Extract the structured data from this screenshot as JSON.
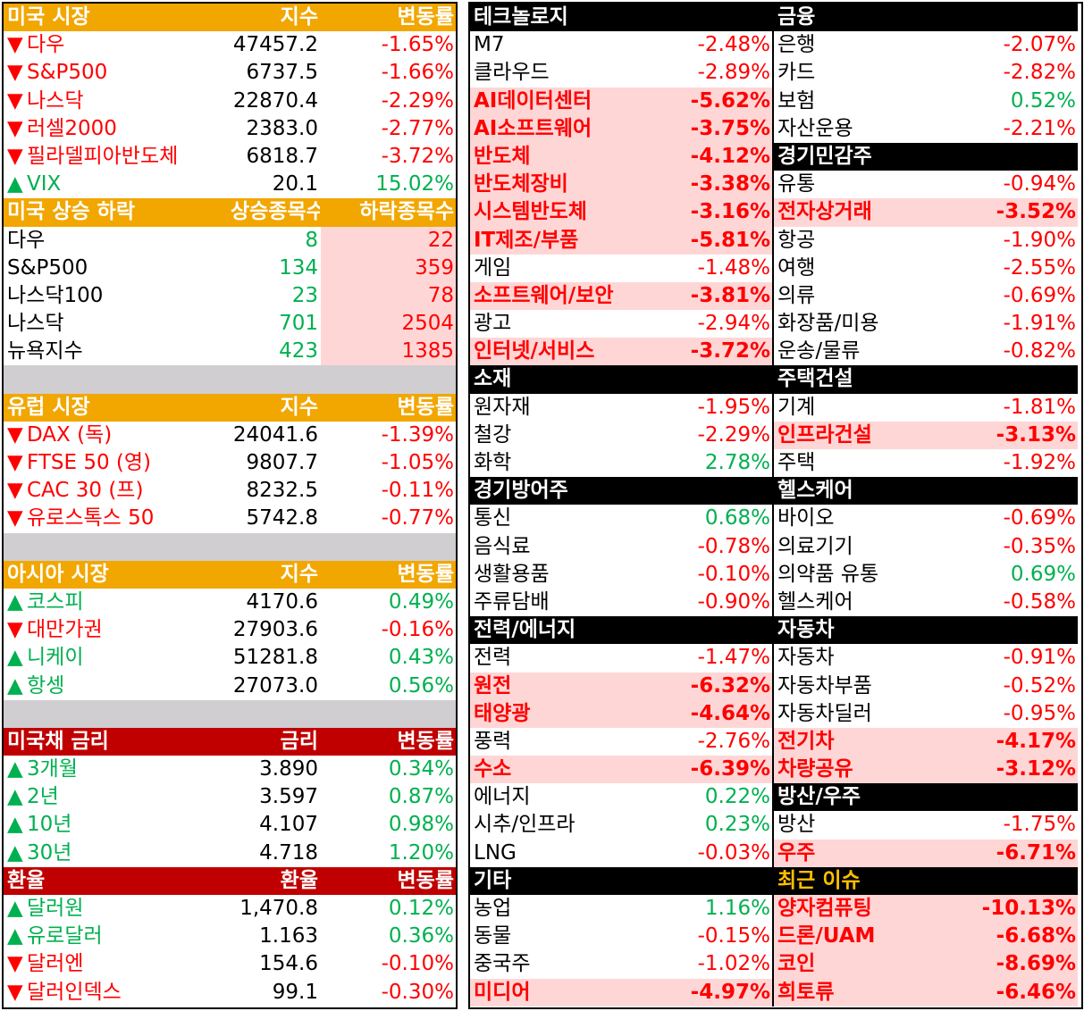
{
  "us_market": {
    "header": {
      "name": "미국 시장",
      "index": "지수",
      "change": "변동률"
    },
    "rows": [
      {
        "arrow": "▼",
        "name": "다우",
        "index": "47457.2",
        "change": "-1.65%",
        "dir": "down"
      },
      {
        "arrow": "▼",
        "name": "S&P500",
        "index": "6737.5",
        "change": "-1.66%",
        "dir": "down"
      },
      {
        "arrow": "▼",
        "name": "나스닥",
        "index": "22870.4",
        "change": "-2.29%",
        "dir": "down"
      },
      {
        "arrow": "▼",
        "name": "러셀2000",
        "index": "2383.0",
        "change": "-2.77%",
        "dir": "down"
      },
      {
        "arrow": "▼",
        "name": "필라델피아반도체",
        "index": "6818.7",
        "change": "-3.72%",
        "dir": "down"
      },
      {
        "arrow": "▲",
        "name": "VIX",
        "index": "20.1",
        "change": "15.02%",
        "dir": "up"
      }
    ]
  },
  "us_breadth": {
    "header": {
      "name": "미국 상승 하락",
      "up": "상승종목수",
      "down": "하락종목수"
    },
    "rows": [
      {
        "name": "다우",
        "up": "8",
        "down": "22"
      },
      {
        "name": "S&P500",
        "up": "134",
        "down": "359"
      },
      {
        "name": "나스닥100",
        "up": "23",
        "down": "78"
      },
      {
        "name": "나스닥",
        "up": "701",
        "down": "2504"
      },
      {
        "name": "뉴욕지수",
        "up": "423",
        "down": "1385"
      }
    ]
  },
  "eu_market": {
    "header": {
      "name": "유럽 시장",
      "index": "지수",
      "change": "변동률"
    },
    "rows": [
      {
        "arrow": "▼",
        "name": "DAX (독)",
        "index": "24041.6",
        "change": "-1.39%",
        "dir": "down"
      },
      {
        "arrow": "▼",
        "name": "FTSE 50 (영)",
        "index": "9807.7",
        "change": "-1.05%",
        "dir": "down"
      },
      {
        "arrow": "▼",
        "name": "CAC 30 (프)",
        "index": "8232.5",
        "change": "-0.11%",
        "dir": "down"
      },
      {
        "arrow": "▼",
        "name": "유로스톡스 50",
        "index": "5742.8",
        "change": "-0.77%",
        "dir": "down"
      }
    ]
  },
  "asia_market": {
    "header": {
      "name": "아시아 시장",
      "index": "지수",
      "change": "변동률"
    },
    "rows": [
      {
        "arrow": "▲",
        "name": "코스피",
        "index": "4170.6",
        "change": "0.49%",
        "dir": "up"
      },
      {
        "arrow": "▼",
        "name": "대만가권",
        "index": "27903.6",
        "change": "-0.16%",
        "dir": "down"
      },
      {
        "arrow": "▲",
        "name": "니케이",
        "index": "51281.8",
        "change": "0.43%",
        "dir": "up"
      },
      {
        "arrow": "▲",
        "name": "항셍",
        "index": "27073.0",
        "change": "0.56%",
        "dir": "up"
      }
    ]
  },
  "us_bonds": {
    "header": {
      "name": "미국채 금리",
      "index": "금리",
      "change": "변동률"
    },
    "rows": [
      {
        "arrow": "▲",
        "name": "3개월",
        "index": "3.890",
        "change": "0.34%",
        "dir": "up"
      },
      {
        "arrow": "▲",
        "name": "2년",
        "index": "3.597",
        "change": "0.87%",
        "dir": "up"
      },
      {
        "arrow": "▲",
        "name": "10년",
        "index": "4.107",
        "change": "0.98%",
        "dir": "up"
      },
      {
        "arrow": "▲",
        "name": "30년",
        "index": "4.718",
        "change": "1.20%",
        "dir": "up"
      }
    ]
  },
  "fx": {
    "header": {
      "name": "환율",
      "index": "환율",
      "change": "변동률"
    },
    "rows": [
      {
        "arrow": "▲",
        "name": "달러원",
        "index": "1,470.8",
        "change": "0.12%",
        "dir": "up"
      },
      {
        "arrow": "▲",
        "name": "유로달러",
        "index": "1.163",
        "change": "0.36%",
        "dir": "up"
      },
      {
        "arrow": "▼",
        "name": "달러엔",
        "index": "154.6",
        "change": "-0.10%",
        "dir": "down"
      },
      {
        "arrow": "▼",
        "name": "달러인덱스",
        "index": "99.1",
        "change": "-0.30%",
        "dir": "down"
      }
    ]
  },
  "sectors": {
    "rows": [
      {
        "type": "hdr",
        "left": "테크놀로지",
        "right": "금융"
      },
      {
        "type": "data",
        "left": {
          "name": "M7",
          "val": "-2.48%",
          "hl": false
        },
        "right": {
          "name": "은행",
          "val": "-2.07%",
          "hl": false
        }
      },
      {
        "type": "data",
        "left": {
          "name": "클라우드",
          "val": "-2.89%",
          "hl": false
        },
        "right": {
          "name": "카드",
          "val": "-2.82%",
          "hl": false
        }
      },
      {
        "type": "data",
        "left": {
          "name": "AI데이터센터",
          "val": "-5.62%",
          "hl": true
        },
        "right": {
          "name": "보험",
          "val": "0.52%",
          "hl": false
        }
      },
      {
        "type": "data",
        "left": {
          "name": "AI소프트웨어",
          "val": "-3.75%",
          "hl": true
        },
        "right": {
          "name": "자산운용",
          "val": "-2.21%",
          "hl": false
        }
      },
      {
        "type": "mixed",
        "left": {
          "name": "반도체",
          "val": "-4.12%",
          "hl": true
        },
        "right": "경기민감주"
      },
      {
        "type": "data",
        "left": {
          "name": "반도체장비",
          "val": "-3.38%",
          "hl": true
        },
        "right": {
          "name": "유통",
          "val": "-0.94%",
          "hl": false
        }
      },
      {
        "type": "data",
        "left": {
          "name": "시스템반도체",
          "val": "-3.16%",
          "hl": true
        },
        "right": {
          "name": "전자상거래",
          "val": "-3.52%",
          "hl": true
        }
      },
      {
        "type": "data",
        "left": {
          "name": "IT제조/부품",
          "val": "-5.81%",
          "hl": true
        },
        "right": {
          "name": "항공",
          "val": "-1.90%",
          "hl": false
        }
      },
      {
        "type": "data",
        "left": {
          "name": "게임",
          "val": "-1.48%",
          "hl": false
        },
        "right": {
          "name": "여행",
          "val": "-2.55%",
          "hl": false
        }
      },
      {
        "type": "data",
        "left": {
          "name": "소프트웨어/보안",
          "val": "-3.81%",
          "hl": true
        },
        "right": {
          "name": "의류",
          "val": "-0.69%",
          "hl": false
        }
      },
      {
        "type": "data",
        "left": {
          "name": "광고",
          "val": "-2.94%",
          "hl": false
        },
        "right": {
          "name": "화장품/미용",
          "val": "-1.91%",
          "hl": false
        }
      },
      {
        "type": "data",
        "left": {
          "name": "인터넷/서비스",
          "val": "-3.72%",
          "hl": true
        },
        "right": {
          "name": "운송/물류",
          "val": "-0.82%",
          "hl": false
        }
      },
      {
        "type": "hdr",
        "left": "소재",
        "right": "주택건설"
      },
      {
        "type": "data",
        "left": {
          "name": "원자재",
          "val": "-1.95%",
          "hl": false
        },
        "right": {
          "name": "기계",
          "val": "-1.81%",
          "hl": false
        }
      },
      {
        "type": "data",
        "left": {
          "name": "철강",
          "val": "-2.29%",
          "hl": false
        },
        "right": {
          "name": "인프라건설",
          "val": "-3.13%",
          "hl": true
        }
      },
      {
        "type": "data",
        "left": {
          "name": "화학",
          "val": "2.78%",
          "hl": false
        },
        "right": {
          "name": "주택",
          "val": "-1.92%",
          "hl": false
        }
      },
      {
        "type": "hdr",
        "left": "경기방어주",
        "right": "헬스케어"
      },
      {
        "type": "data",
        "left": {
          "name": "통신",
          "val": "0.68%",
          "hl": false
        },
        "right": {
          "name": "바이오",
          "val": "-0.69%",
          "hl": false
        }
      },
      {
        "type": "data",
        "left": {
          "name": "음식료",
          "val": "-0.78%",
          "hl": false
        },
        "right": {
          "name": "의료기기",
          "val": "-0.35%",
          "hl": false
        }
      },
      {
        "type": "data",
        "left": {
          "name": "생활용품",
          "val": "-0.10%",
          "hl": false
        },
        "right": {
          "name": "의약품 유통",
          "val": "0.69%",
          "hl": false
        }
      },
      {
        "type": "data",
        "left": {
          "name": "주류담배",
          "val": "-0.90%",
          "hl": false
        },
        "right": {
          "name": "헬스케어",
          "val": "-0.58%",
          "hl": false
        }
      },
      {
        "type": "hdr",
        "left": "전력/에너지",
        "right": "자동차"
      },
      {
        "type": "data",
        "left": {
          "name": "전력",
          "val": "-1.47%",
          "hl": false
        },
        "right": {
          "name": "자동차",
          "val": "-0.91%",
          "hl": false
        }
      },
      {
        "type": "data",
        "left": {
          "name": "원전",
          "val": "-6.32%",
          "hl": true
        },
        "right": {
          "name": "자동차부품",
          "val": "-0.52%",
          "hl": false
        }
      },
      {
        "type": "data",
        "left": {
          "name": "태양광",
          "val": "-4.64%",
          "hl": true
        },
        "right": {
          "name": "자동차딜러",
          "val": "-0.95%",
          "hl": false
        }
      },
      {
        "type": "data",
        "left": {
          "name": "풍력",
          "val": "-2.76%",
          "hl": false
        },
        "right": {
          "name": "전기차",
          "val": "-4.17%",
          "hl": true
        }
      },
      {
        "type": "data",
        "left": {
          "name": "수소",
          "val": "-6.39%",
          "hl": true
        },
        "right": {
          "name": "차량공유",
          "val": "-3.12%",
          "hl": true
        }
      },
      {
        "type": "mixed",
        "left": {
          "name": "에너지",
          "val": "0.22%",
          "hl": false
        },
        "right": "방산/우주"
      },
      {
        "type": "data",
        "left": {
          "name": "시추/인프라",
          "val": "0.23%",
          "hl": false
        },
        "right": {
          "name": "방산",
          "val": "-1.75%",
          "hl": false
        }
      },
      {
        "type": "data",
        "left": {
          "name": "LNG",
          "val": "-0.03%",
          "hl": false
        },
        "right": {
          "name": "우주",
          "val": "-6.71%",
          "hl": true
        }
      },
      {
        "type": "hdr",
        "left": "기타",
        "right": "최근 이슈",
        "right_gold": true
      },
      {
        "type": "data",
        "left": {
          "name": "농업",
          "val": "1.16%",
          "hl": false
        },
        "right": {
          "name": "양자컴퓨팅",
          "val": "-10.13%",
          "hl": true
        }
      },
      {
        "type": "data",
        "left": {
          "name": "동물",
          "val": "-0.15%",
          "hl": false
        },
        "right": {
          "name": "드론/UAM",
          "val": "-6.68%",
          "hl": true
        }
      },
      {
        "type": "data",
        "left": {
          "name": "중국주",
          "val": "-1.02%",
          "hl": false
        },
        "right": {
          "name": "코인",
          "val": "-8.69%",
          "hl": true
        }
      },
      {
        "type": "data",
        "left": {
          "name": "미디어",
          "val": "-4.97%",
          "hl": true
        },
        "right": {
          "name": "희토류",
          "val": "-6.46%",
          "hl": true
        }
      }
    ]
  },
  "colors": {
    "down": "#ff0000",
    "up": "#00b050",
    "orange": "#f2a600",
    "darkred": "#c00000",
    "pink": "#ffd6d6",
    "gold": "#ffc000"
  }
}
